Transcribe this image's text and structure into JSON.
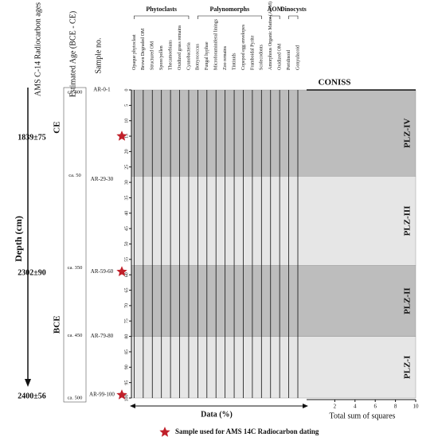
{
  "chart_data": {
    "type": "strat",
    "age_axis_title": "AMS C-14 Radiocarbon ages",
    "depth_label": "Depth (cm)",
    "estimated_age_title": "Estimated Age (BCE - CE)",
    "sample_title": "Sample no.",
    "ages": [
      {
        "label": "1839±75",
        "depth": 15
      },
      {
        "label": "2302±90",
        "depth": 59
      },
      {
        "label": "2400±56",
        "depth": 99
      }
    ],
    "eras": [
      {
        "label": "CE",
        "depth": 7
      },
      {
        "label": "BCE",
        "depth": 71
      }
    ],
    "estimated_ages": [
      {
        "label": "ca. 400",
        "depth": 0
      },
      {
        "label": "ca. 50",
        "depth": 27
      },
      {
        "label": "ca. 350",
        "depth": 57
      },
      {
        "label": "ca. 450",
        "depth": 79
      },
      {
        "label": "ca. 500",
        "depth": 100
      }
    ],
    "samples": [
      {
        "label": "AR-0-1",
        "depth": 0
      },
      {
        "label": "AR-29-30",
        "depth": 29
      },
      {
        "label": "AR-59-60",
        "depth": 59
      },
      {
        "label": "AR-79-80",
        "depth": 80
      },
      {
        "label": "AR-99-100",
        "depth": 99
      }
    ],
    "ylim": [
      0,
      100
    ],
    "yticks": [
      0,
      5,
      10,
      15,
      20,
      25,
      30,
      35,
      40,
      45,
      50,
      55,
      60,
      65,
      70,
      75,
      80,
      85,
      90,
      95,
      100
    ],
    "groups": [
      {
        "name": "Phytoclasts",
        "columns": [
          0,
          6
        ]
      },
      {
        "name": "Palynomorphs",
        "columns": [
          7,
          14
        ]
      },
      {
        "name": "AOM",
        "columns": [
          15,
          16
        ]
      },
      {
        "name": "Dinocysts",
        "columns": [
          17,
          18
        ]
      }
    ],
    "columns": [
      "Opaque phytoclast",
      "Brown Degraded OM",
      "Structured OM",
      "Spore/pollen",
      "Thecamoebians",
      "Oxidized grass remains",
      "Cyanobacteria",
      "Botryococcus",
      "Fungal hyphae",
      "Microforaminiferal linings",
      "Zoo remains",
      "Tintinids",
      "Copepod egg envelopes",
      "Framboidal Pyrite",
      "Scolecodonts",
      "Amorphous Organic Matter (AOM)",
      "Oxidized OM",
      "Peridinoid",
      "Gonyulacoid"
    ],
    "zones": [
      {
        "label": "PLZ-IV",
        "top": 0,
        "bottom": 28,
        "color": "#bdbdbd"
      },
      {
        "label": "PLZ-III",
        "top": 28,
        "bottom": 57,
        "color": "#e6e6e6"
      },
      {
        "label": "PLZ-II",
        "top": 57,
        "bottom": 80,
        "color": "#bdbdbd"
      },
      {
        "label": "PLZ-I",
        "top": 80,
        "bottom": 100,
        "color": "#e6e6e6"
      }
    ],
    "coniss_title": "CONISS",
    "xlabel": "Data (%)",
    "coniss_xlabel": "Total sum of squares",
    "coniss_xlim": [
      0,
      10
    ],
    "coniss_xticks": [
      2,
      4,
      6,
      8,
      10
    ],
    "legend": "Sample used for AMS 14C Radiocarbon dating",
    "star_color": "#c0202a"
  }
}
